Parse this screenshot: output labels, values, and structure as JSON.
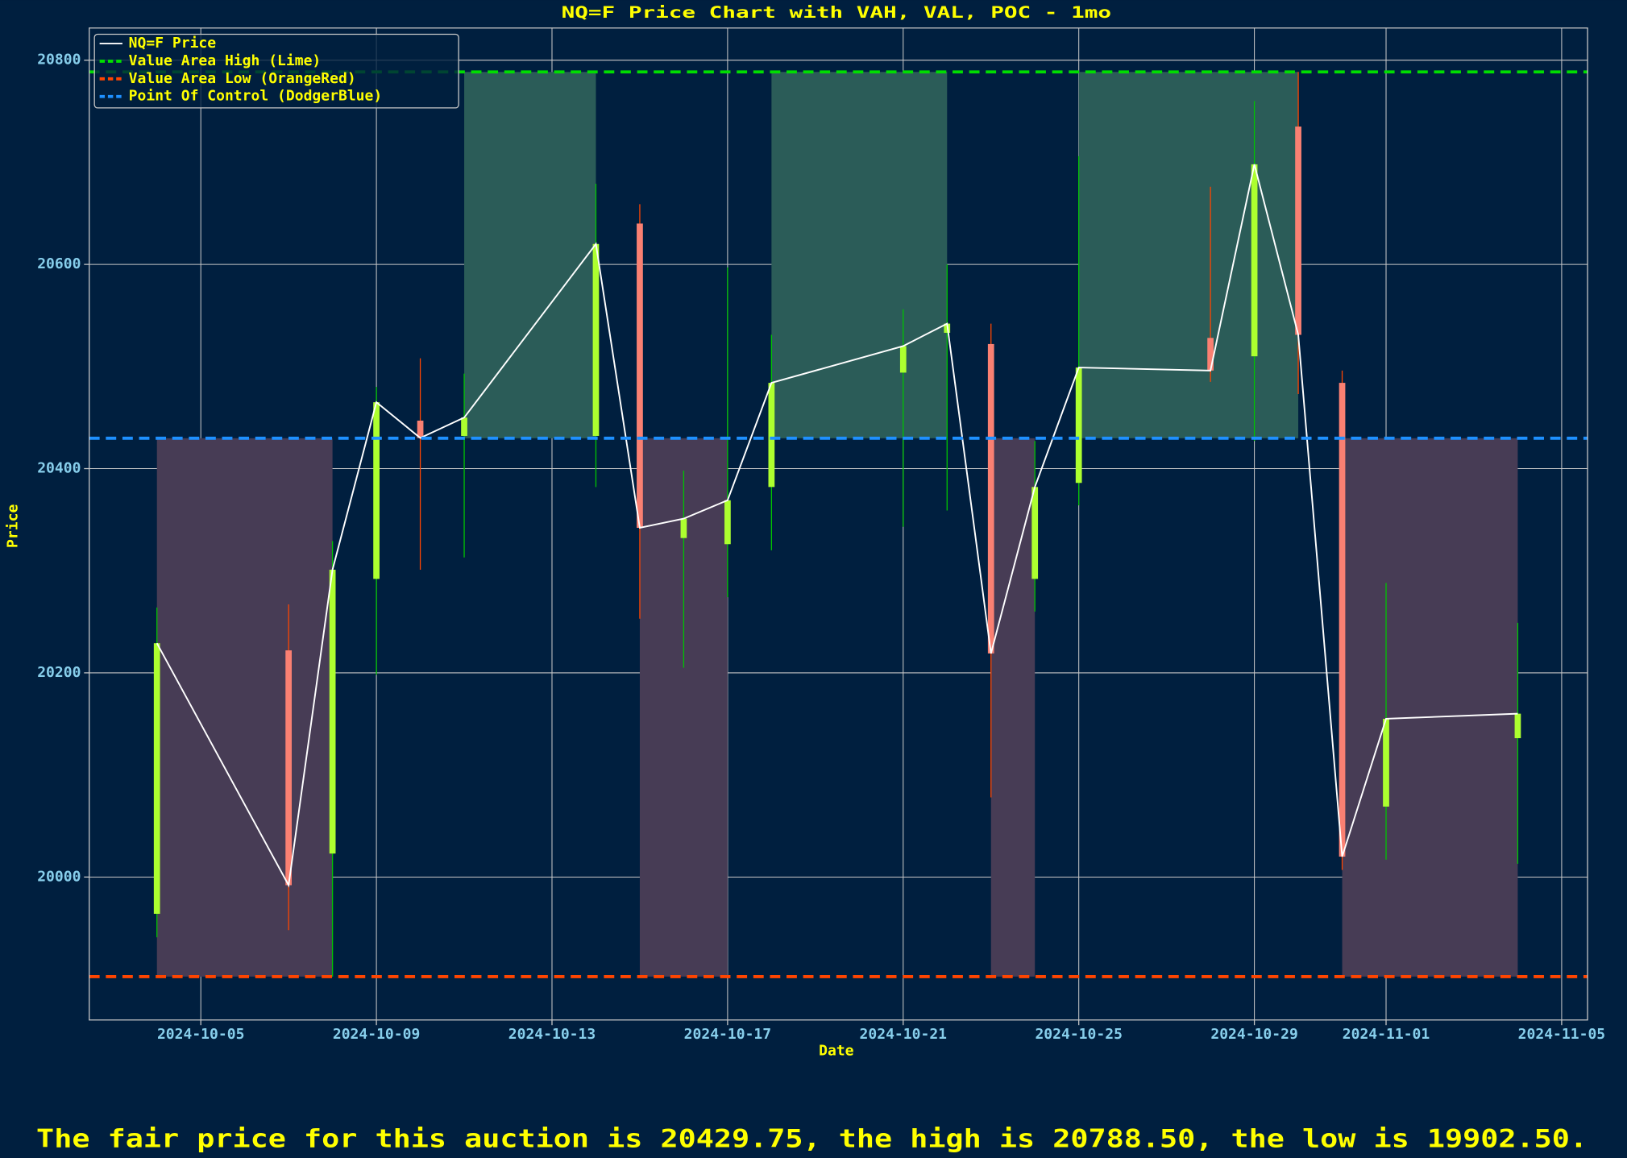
{
  "chart_data": {
    "type": "candlestick",
    "title": "NQ=F Price Chart with VAH, VAL, POC - 1mo",
    "xlabel": "Date",
    "ylabel": "Price",
    "footer": "The fair price for this auction is 20429.75, the high is 20788.50, the low is 19902.50.",
    "x": [
      "2024-10-04",
      "2024-10-07",
      "2024-10-08",
      "2024-10-09",
      "2024-10-10",
      "2024-10-11",
      "2024-10-14",
      "2024-10-15",
      "2024-10-16",
      "2024-10-17",
      "2024-10-18",
      "2024-10-21",
      "2024-10-22",
      "2024-10-23",
      "2024-10-24",
      "2024-10-25",
      "2024-10-28",
      "2024-10-29",
      "2024-10-30",
      "2024-10-31",
      "2024-11-01",
      "2024-11-04"
    ],
    "open": [
      19964,
      20222,
      20023,
      20292,
      20447,
      20432,
      20432,
      20640,
      20332,
      20326,
      20382,
      20494,
      20533,
      20522,
      20292,
      20386,
      20528,
      20510,
      20735,
      20484,
      20069,
      20136
    ],
    "high": [
      20264,
      20267,
      20329,
      20480,
      20508,
      20493,
      20679,
      20659,
      20398,
      20597,
      20531,
      20556,
      20600,
      20542,
      20427,
      20706,
      20676,
      20760,
      20788.5,
      20496,
      20288,
      20249
    ],
    "low": [
      19941,
      19948,
      19902.5,
      20198,
      20301,
      20313,
      20382,
      20253,
      20205,
      20274,
      20320,
      20343,
      20359,
      20078,
      20260,
      20364,
      20485,
      20427,
      20473,
      20007,
      20017,
      20013
    ],
    "close": [
      20229,
      19992,
      20301,
      20465,
      20430,
      20450,
      20620,
      20342,
      20351,
      20369,
      20484,
      20520,
      20542,
      20219,
      20382,
      20499,
      20496,
      20698,
      20531,
      20020,
      20155,
      20160
    ],
    "up_color": "#adff2f",
    "down_color": "#fa8072",
    "up_wick_color": "#00c400",
    "down_wick_color": "#ff4500",
    "price_line": {
      "name": "NQ=F Price",
      "color": "#ffffff"
    },
    "hlines": [
      {
        "name": "Value Area High (Lime)",
        "value": 20788.5,
        "color": "#00dd00"
      },
      {
        "name": "Value Area Low (OrangeRed)",
        "value": 19902.5,
        "color": "#ff4500"
      },
      {
        "name": "Point Of Control (DodgerBlue)",
        "value": 20429.75,
        "color": "#1e90ff"
      }
    ],
    "upper_spans": [
      [
        "2024-10-11",
        "2024-10-14"
      ],
      [
        "2024-10-18",
        "2024-10-22"
      ],
      [
        "2024-10-25",
        "2024-10-30"
      ]
    ],
    "lower_spans": [
      [
        "2024-10-04",
        "2024-10-08"
      ],
      [
        "2024-10-15",
        "2024-10-17"
      ],
      [
        "2024-10-23",
        "2024-10-24"
      ],
      [
        "2024-10-31",
        "2024-11-04"
      ]
    ],
    "upper_span_color": "#2b5c58",
    "lower_span_color": "#473c55",
    "xlim": [
      "2024-10-02T11:00Z",
      "2024-11-05T14:10Z"
    ],
    "xticks": [
      "2024-10-05",
      "2024-10-09",
      "2024-10-13",
      "2024-10-17",
      "2024-10-21",
      "2024-10-25",
      "2024-10-29",
      "2024-11-01",
      "2024-11-05"
    ],
    "ylim": [
      19860,
      20831.5
    ],
    "yticks": [
      20000,
      20200,
      20400,
      20600,
      20800
    ],
    "grid": true,
    "legend": "upper left"
  }
}
